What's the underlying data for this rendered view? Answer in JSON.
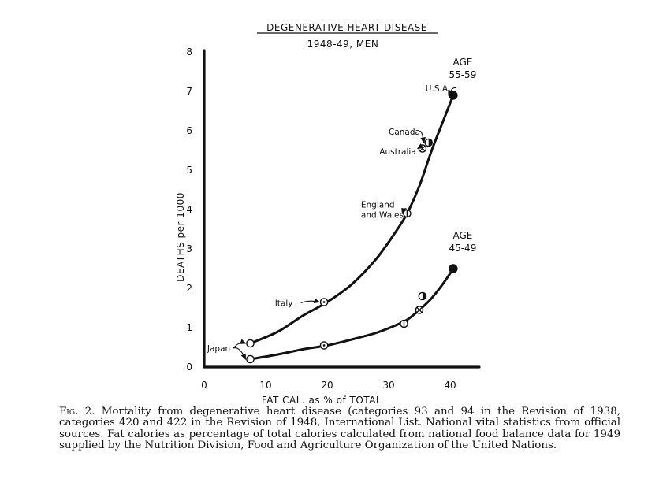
{
  "chart_data": {
    "type": "line",
    "title": "DEGENERATIVE HEART DISEASE",
    "subtitle": "1948-49, MEN",
    "xlabel": "FAT CAL. as % of TOTAL",
    "ylabel": "DEATHS per 1000",
    "xlim": [
      0,
      45
    ],
    "ylim": [
      0,
      8
    ],
    "x_ticks": [
      "0",
      "10",
      "20",
      "30",
      "40"
    ],
    "y_ticks": [
      "0",
      "1",
      "2",
      "3",
      "4",
      "5",
      "6",
      "7",
      "8"
    ],
    "grid": false,
    "series": [
      {
        "name": "AGE 55-59",
        "label_lines": [
          "AGE",
          "55-59"
        ],
        "curve": [
          [
            7.5,
            0.6
          ],
          [
            12,
            0.9
          ],
          [
            16,
            1.3
          ],
          [
            20,
            1.65
          ],
          [
            24,
            2.1
          ],
          [
            28,
            2.75
          ],
          [
            31,
            3.4
          ],
          [
            33,
            3.9
          ],
          [
            35,
            4.6
          ],
          [
            37,
            5.5
          ],
          [
            39,
            6.3
          ],
          [
            40.5,
            6.9
          ]
        ],
        "points": [
          {
            "x": 7.5,
            "y": 0.6,
            "marker": "open"
          },
          {
            "x": 19.5,
            "y": 1.65,
            "marker": "dot"
          },
          {
            "x": 33,
            "y": 3.9,
            "marker": "half-v"
          },
          {
            "x": 35.5,
            "y": 5.55,
            "marker": "cross"
          },
          {
            "x": 36.5,
            "y": 5.7,
            "marker": "half-r"
          },
          {
            "x": 40.5,
            "y": 6.9,
            "marker": "filled"
          }
        ]
      },
      {
        "name": "AGE 45-49",
        "label_lines": [
          "AGE",
          "45-49"
        ],
        "curve": [
          [
            7.5,
            0.2
          ],
          [
            12,
            0.32
          ],
          [
            16,
            0.45
          ],
          [
            20,
            0.55
          ],
          [
            24,
            0.7
          ],
          [
            28,
            0.87
          ],
          [
            31,
            1.05
          ],
          [
            33,
            1.2
          ],
          [
            35,
            1.45
          ],
          [
            37,
            1.75
          ],
          [
            39,
            2.15
          ],
          [
            40.5,
            2.5
          ]
        ],
        "points": [
          {
            "x": 7.5,
            "y": 0.2,
            "marker": "open"
          },
          {
            "x": 19.5,
            "y": 0.55,
            "marker": "dot"
          },
          {
            "x": 32.5,
            "y": 1.1,
            "marker": "half-v"
          },
          {
            "x": 35,
            "y": 1.45,
            "marker": "cross"
          },
          {
            "x": 35.5,
            "y": 1.8,
            "marker": "half-r"
          },
          {
            "x": 40.5,
            "y": 2.5,
            "marker": "filled"
          }
        ]
      }
    ],
    "annotations": [
      {
        "text": "Japan",
        "lines": [
          "Japan"
        ],
        "x": 0.5,
        "y": 0.4,
        "targets": [
          [
            7.5,
            0.6
          ],
          [
            7.5,
            0.2
          ]
        ]
      },
      {
        "text": "Italy",
        "lines": [
          "Italy"
        ],
        "x": 11.5,
        "y": 1.55,
        "targets": [
          [
            19.5,
            1.65
          ]
        ]
      },
      {
        "text": "England and Wales",
        "lines": [
          "England",
          "and Wales"
        ],
        "x": 25.5,
        "y": 4.05,
        "targets": [
          [
            33,
            3.9
          ]
        ]
      },
      {
        "text": "Australia",
        "lines": [
          "Australia"
        ],
        "x": 28.5,
        "y": 5.4,
        "targets": [
          [
            35.5,
            5.55
          ]
        ]
      },
      {
        "text": "Canada",
        "lines": [
          "Canada"
        ],
        "x": 30,
        "y": 5.9,
        "targets": [
          [
            36.5,
            5.7
          ]
        ]
      },
      {
        "text": "U.S.A.",
        "lines": [
          "U.S.A."
        ],
        "x": 36,
        "y": 7.0,
        "targets": [
          [
            40.5,
            6.9
          ]
        ]
      }
    ]
  },
  "caption": {
    "label": "Fig. 2.",
    "text": "Mortality from degenerative heart disease (categories 93 and 94 in the Revision of 1938, categories 420 and 422 in the Revision of 1948, International List. National vital statistics from official sources. Fat calories as percentage of total calories calculated from national food balance data for 1949 supplied by the Nutrition Division, Food and Agriculture Organization of the United Nations."
  }
}
